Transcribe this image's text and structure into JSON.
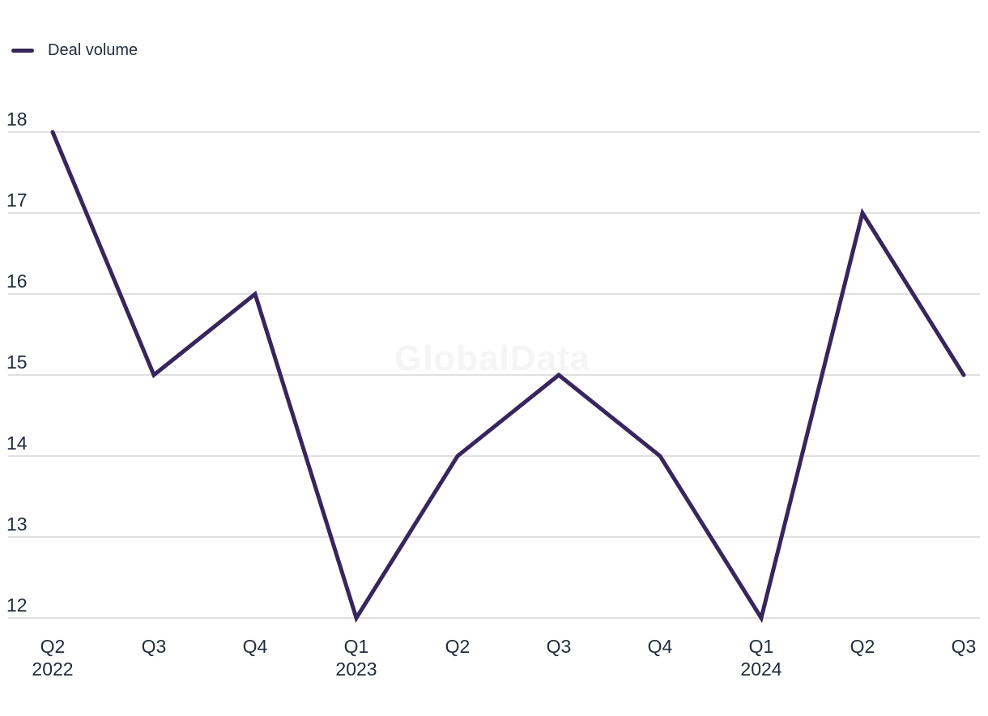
{
  "chart_data": {
    "type": "line",
    "title": "",
    "legend": "Deal volume",
    "watermark": "GlobalData",
    "categories": [
      {
        "quarter": "Q2",
        "year": "2022"
      },
      {
        "quarter": "Q3"
      },
      {
        "quarter": "Q4"
      },
      {
        "quarter": "Q1",
        "year": "2023"
      },
      {
        "quarter": "Q2"
      },
      {
        "quarter": "Q3"
      },
      {
        "quarter": "Q4"
      },
      {
        "quarter": "Q1",
        "year": "2024"
      },
      {
        "quarter": "Q2"
      },
      {
        "quarter": "Q3"
      }
    ],
    "series": [
      {
        "name": "Deal volume",
        "values": [
          18,
          15,
          16,
          12,
          14,
          15,
          14,
          12,
          17,
          15
        ]
      }
    ],
    "xlabel": "",
    "ylabel": "",
    "ylim": [
      12,
      18
    ],
    "yticks": [
      12,
      13,
      14,
      15,
      16,
      17,
      18
    ],
    "grid": "horizontal",
    "legend_position": "top-left",
    "colors": {
      "line": "#37265C",
      "grid": "#E0E0E0",
      "text": "#222B3B",
      "watermark": "#F5F5F5",
      "background": "#FFFFFF"
    }
  }
}
